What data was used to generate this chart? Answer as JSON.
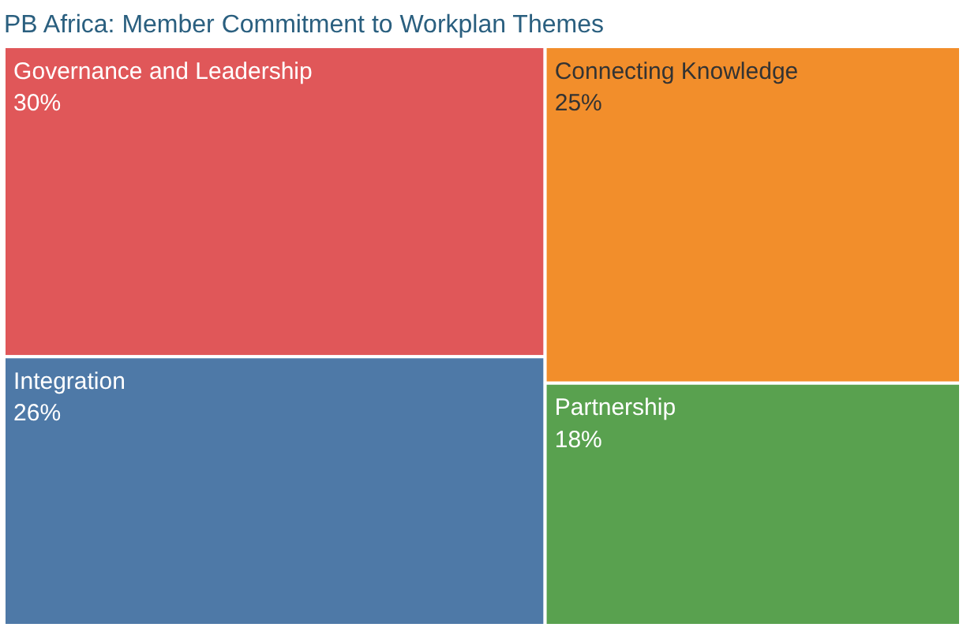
{
  "chart_data": {
    "type": "other",
    "title": "PB Africa:  Member Commitment to Workplan Themes",
    "categories": [
      "Governance and Leadership",
      "Integration",
      "Connecting Knowledge",
      "Partnership"
    ],
    "values": [
      30,
      26,
      25,
      18
    ],
    "value_labels": [
      "30%",
      "26%",
      "25%",
      "18%"
    ],
    "colors": [
      "#e05759",
      "#4e79a7",
      "#f28e2b",
      "#59a14f"
    ]
  }
}
